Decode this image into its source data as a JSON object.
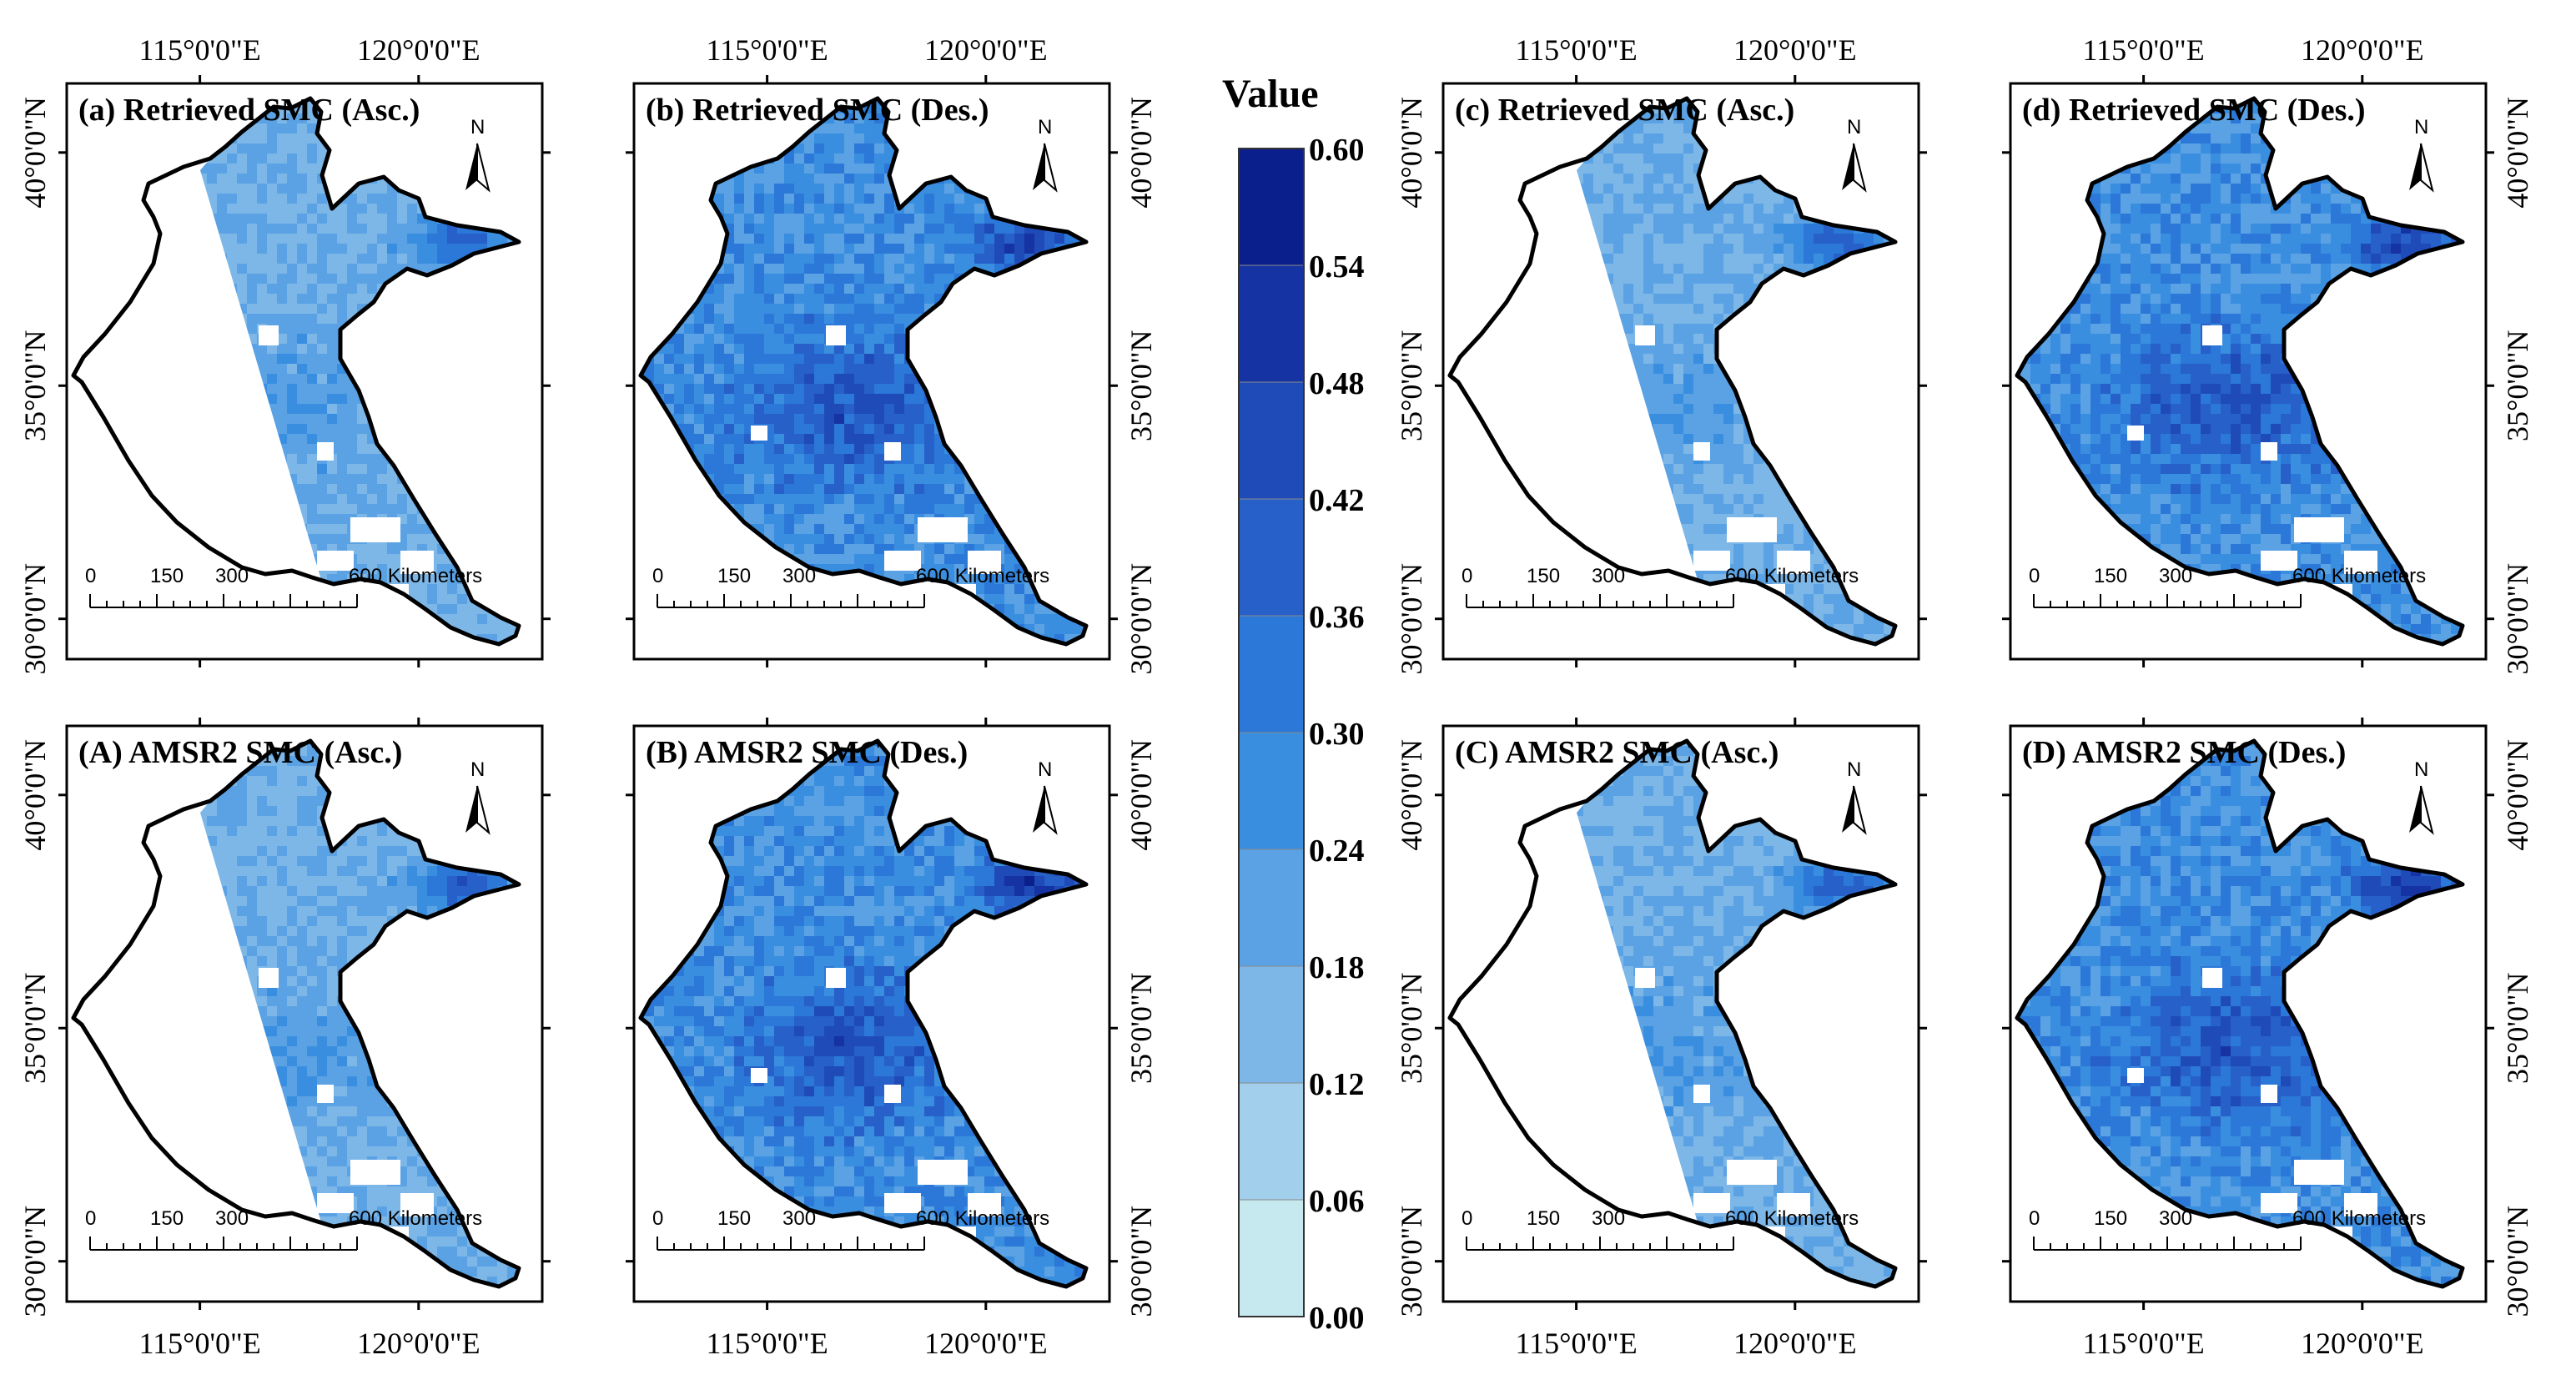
{
  "figure": {
    "panels": [
      {
        "id": "a",
        "title": "(a) Retrieved SMC (Asc.)",
        "pass": "asc",
        "seed": 11
      },
      {
        "id": "b",
        "title": "(b) Retrieved SMC (Des.)",
        "pass": "des",
        "seed": 23
      },
      {
        "id": "c",
        "title": "(c) Retrieved SMC (Asc.)",
        "pass": "asc",
        "seed": 37
      },
      {
        "id": "d",
        "title": "(d) Retrieved SMC (Des.)",
        "pass": "des",
        "seed": 41
      },
      {
        "id": "A",
        "title": "(A) AMSR2 SMC (Asc.)",
        "pass": "asc",
        "seed": 53
      },
      {
        "id": "B",
        "title": "(B) AMSR2 SMC (Des.)",
        "pass": "des",
        "seed": 67
      },
      {
        "id": "C",
        "title": "(C) AMSR2 SMC (Asc.)",
        "pass": "asc",
        "seed": 71
      },
      {
        "id": "D",
        "title": "(D) AMSR2 SMC (Des.)",
        "pass": "des",
        "seed": 83
      }
    ],
    "lon_labels": [
      "115°0'0\"E",
      "120°0'0\"E"
    ],
    "lat_labels": [
      "40°0'0\"N",
      "35°0'0\"N",
      "30°0'0\"N"
    ],
    "north_label": "N",
    "scale_bar": {
      "ticks": [
        "0",
        "150",
        "300"
      ],
      "end_label": "600 Kilometers"
    },
    "legend": {
      "title": "Value",
      "values": [
        "0.60",
        "0.54",
        "0.48",
        "0.42",
        "0.36",
        "0.30",
        "0.24",
        "0.18",
        "0.12",
        "0.06",
        "0.00"
      ],
      "colors": [
        "#0b1f8c",
        "#1633a3",
        "#1f4bb8",
        "#2660c8",
        "#2b78d8",
        "#3a8ee0",
        "#5aa2e4",
        "#7db7e8",
        "#a2cfec",
        "#c6e8ef"
      ]
    }
  }
}
